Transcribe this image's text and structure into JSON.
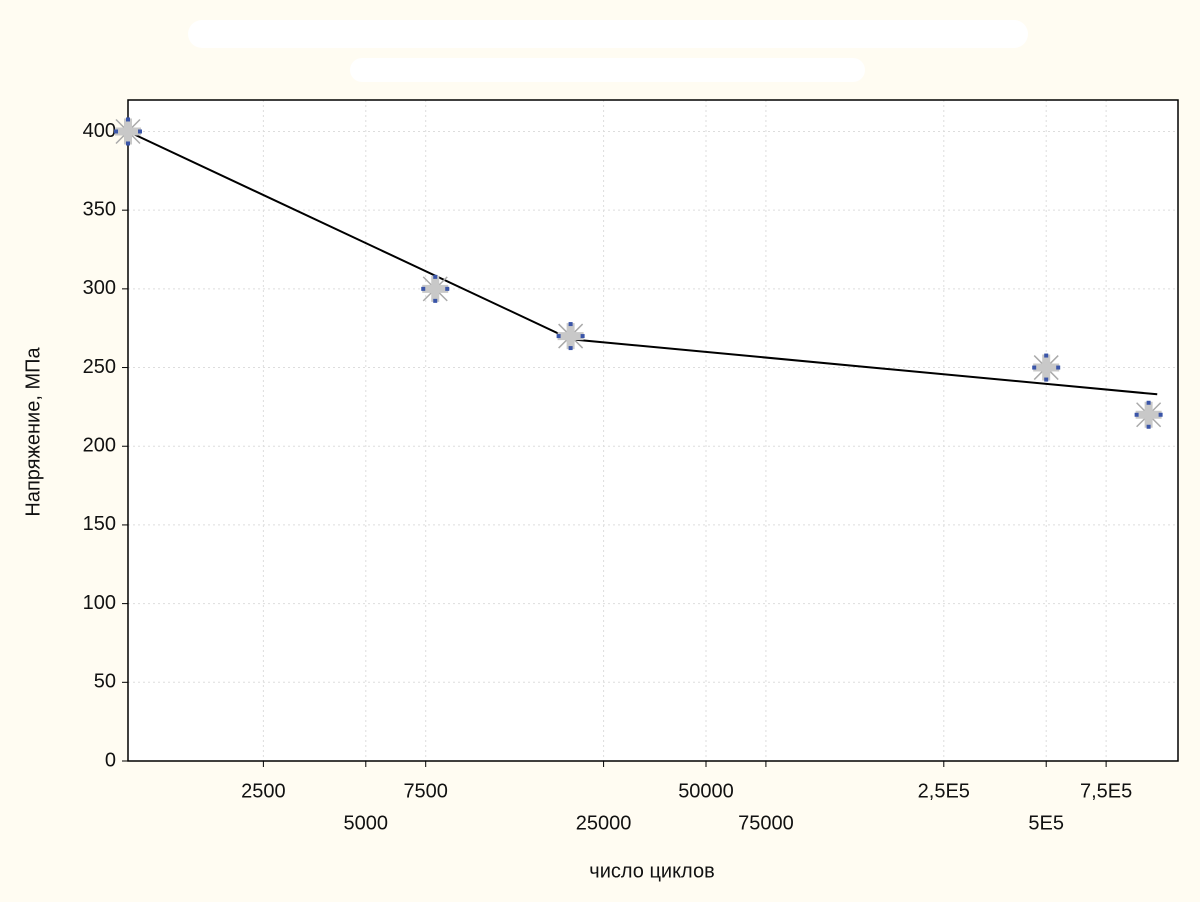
{
  "chart_data": {
    "type": "scatter",
    "x_label": "число циклов",
    "y_label": "Напряжение, МПа",
    "x_scale": "log",
    "xlim": [
      1000,
      1220000
    ],
    "ylim": [
      0,
      420
    ],
    "xticks": [
      2500,
      5000,
      7500,
      25000,
      50000,
      75000,
      {
        "value": 250000,
        "label": "2,5E5"
      },
      {
        "value": 500000,
        "label": "5E5"
      },
      {
        "value": 750000,
        "label": "7,5E5"
      }
    ],
    "yticks": [
      0,
      50,
      100,
      150,
      200,
      250,
      300,
      350,
      400
    ],
    "grid": true,
    "x": [
      1000,
      8000,
      20000,
      500000,
      1000000
    ],
    "values": [
      400,
      300,
      270,
      250,
      220
    ],
    "color": "#3a55a8",
    "fit_line": {
      "x": [
        1000,
        20000,
        1060000
      ],
      "values": [
        400,
        268,
        233
      ],
      "color": "#000000"
    }
  }
}
